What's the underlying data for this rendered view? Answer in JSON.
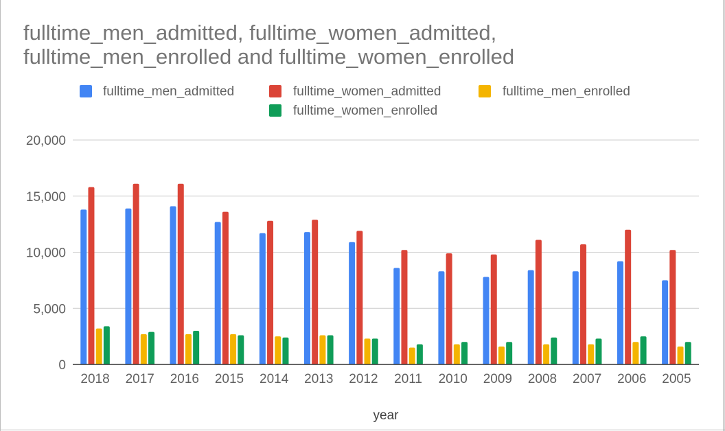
{
  "chart_data": {
    "type": "bar",
    "title_lines": [
      "fulltime_men_admitted, fulltime_women_admitted,",
      "fulltime_men_enrolled and fulltime_women_enrolled"
    ],
    "xlabel": "year",
    "ylabel": "",
    "ylim": [
      0,
      20000
    ],
    "y_ticks": [
      "0",
      "5,000",
      "10,000",
      "15,000",
      "20,000"
    ],
    "y_tick_values": [
      0,
      5000,
      10000,
      15000,
      20000
    ],
    "grid": true,
    "legend_position": "top",
    "categories": [
      "2018",
      "2017",
      "2016",
      "2015",
      "2014",
      "2013",
      "2012",
      "2011",
      "2010",
      "2009",
      "2008",
      "2007",
      "2006",
      "2005"
    ],
    "series": [
      {
        "name": "fulltime_men_admitted",
        "color": "#4285F4",
        "values": [
          13800,
          13900,
          14100,
          12700,
          11700,
          11800,
          10900,
          8600,
          8300,
          7800,
          8400,
          8300,
          9200,
          7500
        ]
      },
      {
        "name": "fulltime_women_admitted",
        "color": "#DB4437",
        "values": [
          15800,
          16100,
          16100,
          13600,
          12800,
          12900,
          11900,
          10200,
          9900,
          9800,
          11100,
          10700,
          12000,
          10200
        ]
      },
      {
        "name": "fulltime_men_enrolled",
        "color": "#F4B400",
        "values": [
          3200,
          2700,
          2700,
          2700,
          2500,
          2600,
          2300,
          1500,
          1800,
          1600,
          1800,
          1800,
          2000,
          1600
        ]
      },
      {
        "name": "fulltime_women_enrolled",
        "color": "#0F9D58",
        "values": [
          3400,
          2900,
          3000,
          2600,
          2400,
          2600,
          2300,
          1800,
          2000,
          2000,
          2400,
          2300,
          2500,
          2000
        ]
      }
    ]
  }
}
